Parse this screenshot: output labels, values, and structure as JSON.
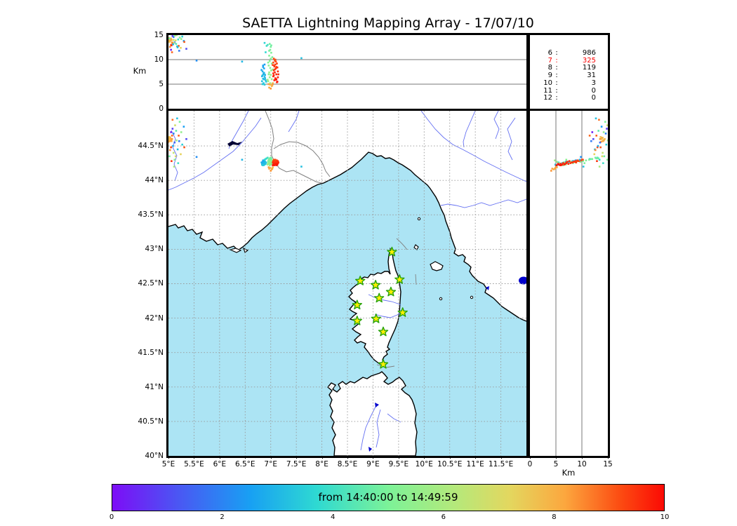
{
  "title": "SAETTA Lightning Mapping Array - 17/07/10",
  "top_panel": {
    "ylabel": "Km",
    "yticks": [
      "15",
      "10",
      "5",
      "0"
    ]
  },
  "map_panel": {
    "xticks": [
      "5°E",
      "5.5°E",
      "6°E",
      "6.5°E",
      "7°E",
      "7.5°E",
      "8°E",
      "8.5°E",
      "9°E",
      "9.5°E",
      "10°E",
      "10.5°E",
      "11°E",
      "11.5°E"
    ],
    "yticks": [
      "44.5°N",
      "44°N",
      "43.5°N",
      "43°N",
      "42.5°N",
      "42°N",
      "41.5°N",
      "41°N",
      "40.5°N",
      "40°N"
    ]
  },
  "right_panel": {
    "xlabel": "Km",
    "xticks": [
      "0",
      "5",
      "10",
      "15"
    ]
  },
  "stats": {
    "rows": [
      {
        "label": "6",
        "value": "986",
        "highlight": false
      },
      {
        "label": "7",
        "value": "325",
        "highlight": true
      },
      {
        "label": "8",
        "value": "119",
        "highlight": false
      },
      {
        "label": "9",
        "value": "31",
        "highlight": false
      },
      {
        "label": "10",
        "value": "3",
        "highlight": false
      },
      {
        "label": "11",
        "value": "0",
        "highlight": false
      },
      {
        "label": "12",
        "value": "0",
        "highlight": false
      }
    ]
  },
  "colorbar": {
    "label": "from 14:40:00 to 14:49:59",
    "ticks": [
      "0",
      "2",
      "4",
      "6",
      "8",
      "10"
    ],
    "stops": [
      {
        "p": 0,
        "c": "#7d0df6"
      },
      {
        "p": 12,
        "c": "#4a57f3"
      },
      {
        "p": 25,
        "c": "#18a0f3"
      },
      {
        "p": 37,
        "c": "#2ed9d2"
      },
      {
        "p": 50,
        "c": "#7cf298"
      },
      {
        "p": 62,
        "c": "#b4e97b"
      },
      {
        "p": 72,
        "c": "#e3d75f"
      },
      {
        "p": 82,
        "c": "#fca73e"
      },
      {
        "p": 92,
        "c": "#fc4c12"
      },
      {
        "p": 100,
        "c": "#fb0a04"
      }
    ]
  },
  "colors": {
    "sea": "#ace4f4",
    "land": "#ffffff",
    "coast": "#000000",
    "river": "#6470f2",
    "border_line": "#808080",
    "grid": "#999999",
    "panel_gridline": "#777777",
    "station_fill": "#fdee02",
    "station_stroke": "#27a30c",
    "lake": "#0000cc",
    "dark_lake": "#000033",
    "highlight": "#fb0000"
  },
  "chart_data": {
    "type": "scatter",
    "title": "SAETTA Lightning Mapping Array - 17/07/10",
    "time_range": {
      "start": "14:40:00",
      "end": "14:49:59",
      "colorbar_scale_min": 0,
      "colorbar_scale_max": 10
    },
    "panels": {
      "top": {
        "x": "longitude_deg_E",
        "xlim": [
          5,
          12
        ],
        "y": "altitude_km",
        "ylim": [
          0,
          15
        ],
        "gridlines_y": [
          5,
          10
        ]
      },
      "map": {
        "x": "longitude_deg_E",
        "xlim": [
          5,
          12
        ],
        "y": "latitude_deg_N",
        "ylim": [
          40,
          45.01
        ],
        "grid_step_deg": 0.5
      },
      "right": {
        "x": "altitude_km",
        "xlim": [
          0,
          15
        ],
        "y": "latitude_deg_N",
        "ylim": [
          40,
          45.01
        ],
        "gridlines_x": [
          5,
          10
        ]
      }
    },
    "station_count_histogram": {
      "contributing_stations": [
        6,
        7,
        8,
        9,
        10,
        11,
        12
      ],
      "source_counts": [
        986,
        325,
        119,
        31,
        3,
        0,
        0
      ]
    },
    "point_format": [
      "lon_deg_E",
      "lat_deg_N",
      "alt_km",
      "time_min_0_10"
    ],
    "points": [
      [
        6.85,
        44.29,
        8.8,
        2.6
      ],
      [
        6.87,
        44.28,
        8.2,
        2.7
      ],
      [
        6.84,
        44.27,
        7.6,
        2.8
      ],
      [
        6.86,
        44.25,
        7.0,
        2.9
      ],
      [
        6.88,
        44.26,
        6.5,
        3.0
      ],
      [
        6.85,
        44.24,
        6.1,
        3.1
      ],
      [
        6.83,
        44.23,
        5.6,
        3.2
      ],
      [
        6.86,
        44.22,
        5.2,
        3.3
      ],
      [
        6.88,
        44.23,
        4.9,
        3.4
      ],
      [
        6.84,
        44.25,
        6.8,
        3.0
      ],
      [
        6.87,
        44.27,
        7.3,
        2.8
      ],
      [
        6.89,
        44.25,
        6.2,
        3.1
      ],
      [
        6.82,
        44.26,
        7.9,
        2.7
      ],
      [
        6.9,
        44.24,
        5.8,
        3.2
      ],
      [
        6.85,
        44.28,
        8.5,
        2.6
      ],
      [
        6.88,
        44.29,
        9.0,
        2.5
      ],
      [
        6.83,
        44.24,
        6.6,
        3.0
      ],
      [
        6.86,
        44.26,
        7.2,
        2.9
      ],
      [
        6.89,
        44.27,
        6.9,
        3.0
      ],
      [
        6.91,
        44.26,
        5.5,
        3.3
      ],
      [
        6.84,
        44.22,
        5.0,
        3.4
      ],
      [
        6.87,
        44.24,
        6.0,
        3.1
      ],
      [
        6.88,
        44.3,
        13.4,
        3.6
      ],
      [
        6.92,
        44.32,
        12.8,
        3.9
      ],
      [
        6.9,
        44.31,
        11.5,
        3.7
      ],
      [
        6.94,
        44.33,
        13.0,
        4.1
      ],
      [
        6.98,
        44.32,
        13.2,
        4.8
      ],
      [
        7.0,
        44.33,
        12.6,
        4.9
      ],
      [
        6.99,
        44.31,
        12.0,
        5.0
      ],
      [
        7.01,
        44.3,
        11.4,
        5.0
      ],
      [
        6.97,
        44.29,
        10.8,
        5.1
      ],
      [
        7.0,
        44.28,
        10.2,
        5.1
      ],
      [
        6.98,
        44.27,
        9.7,
        5.2
      ],
      [
        7.02,
        44.28,
        9.2,
        5.2
      ],
      [
        6.96,
        44.26,
        8.8,
        5.3
      ],
      [
        6.99,
        44.25,
        8.3,
        5.3
      ],
      [
        7.01,
        44.26,
        7.8,
        5.4
      ],
      [
        6.97,
        44.24,
        7.4,
        5.4
      ],
      [
        7.0,
        44.23,
        6.9,
        5.5
      ],
      [
        6.98,
        44.22,
        6.4,
        5.5
      ],
      [
        7.02,
        44.24,
        6.0,
        5.6
      ],
      [
        6.95,
        44.25,
        5.6,
        5.6
      ],
      [
        6.99,
        44.27,
        5.2,
        5.7
      ],
      [
        7.03,
        44.29,
        4.8,
        5.7
      ],
      [
        6.96,
        44.3,
        7.0,
        5.3
      ],
      [
        7.04,
        44.27,
        8.0,
        5.2
      ],
      [
        6.95,
        44.28,
        9.4,
        5.1
      ],
      [
        7.03,
        44.25,
        10.5,
        5.0
      ],
      [
        6.97,
        44.31,
        11.8,
        4.9
      ],
      [
        7.05,
        44.26,
        6.6,
        5.6
      ],
      [
        6.94,
        44.23,
        5.9,
        5.8
      ],
      [
        7.01,
        44.32,
        12.9,
        4.8
      ],
      [
        7.06,
        44.3,
        10.2,
        9.2
      ],
      [
        7.08,
        44.29,
        9.8,
        9.3
      ],
      [
        7.05,
        44.28,
        9.4,
        9.3
      ],
      [
        7.09,
        44.28,
        9.0,
        9.4
      ],
      [
        7.07,
        44.27,
        8.6,
        9.4
      ],
      [
        7.1,
        44.26,
        8.2,
        9.5
      ],
      [
        7.06,
        44.25,
        7.8,
        9.5
      ],
      [
        7.08,
        44.24,
        7.4,
        9.6
      ],
      [
        7.11,
        44.25,
        7.0,
        9.6
      ],
      [
        7.05,
        44.23,
        6.6,
        9.7
      ],
      [
        7.09,
        44.23,
        6.2,
        9.7
      ],
      [
        7.07,
        44.22,
        5.8,
        9.8
      ],
      [
        7.12,
        44.24,
        5.4,
        9.8
      ],
      [
        7.04,
        44.26,
        8.9,
        9.4
      ],
      [
        7.13,
        44.27,
        8.4,
        9.5
      ],
      [
        7.1,
        44.29,
        9.6,
        9.3
      ],
      [
        7.14,
        44.28,
        7.6,
        9.6
      ],
      [
        7.05,
        44.27,
        7.2,
        9.6
      ],
      [
        7.11,
        44.22,
        6.0,
        9.8
      ],
      [
        7.08,
        44.26,
        8.0,
        9.5
      ],
      [
        7.12,
        44.29,
        9.2,
        9.4
      ],
      [
        7.06,
        44.24,
        6.8,
        9.7
      ],
      [
        7.14,
        44.25,
        6.4,
        9.7
      ],
      [
        7.09,
        44.3,
        10.0,
        9.2
      ],
      [
        7.15,
        44.26,
        7.0,
        9.6
      ],
      [
        7.07,
        44.28,
        8.8,
        9.4
      ],
      [
        7.1,
        44.24,
        5.9,
        9.8
      ],
      [
        7.13,
        44.23,
        5.5,
        9.9
      ],
      [
        7.04,
        44.22,
        5.1,
        9.9
      ],
      [
        7.11,
        44.27,
        8.5,
        9.5
      ],
      [
        6.99,
        44.18,
        4.9,
        7.9
      ],
      [
        7.02,
        44.16,
        4.6,
        8.0
      ],
      [
        6.97,
        44.17,
        4.3,
        8.2
      ],
      [
        7.04,
        44.19,
        5.2,
        7.8
      ],
      [
        7.0,
        44.14,
        4.1,
        8.4
      ],
      [
        7.03,
        44.17,
        4.8,
        8.1
      ],
      [
        6.96,
        44.19,
        5.0,
        8.3
      ],
      [
        5.0,
        44.62,
        14.0,
        7.6
      ],
      [
        5.02,
        44.6,
        13.8,
        7.8
      ],
      [
        5.01,
        44.58,
        14.2,
        8.0
      ],
      [
        5.04,
        44.61,
        13.9,
        7.7
      ],
      [
        5.03,
        44.57,
        14.1,
        8.1
      ],
      [
        5.0,
        44.56,
        13.7,
        8.3
      ],
      [
        5.05,
        44.59,
        14.3,
        7.9
      ],
      [
        5.02,
        44.63,
        13.6,
        7.5
      ],
      [
        5.06,
        44.57,
        14.0,
        8.2
      ],
      [
        5.01,
        44.6,
        14.4,
        7.8
      ],
      [
        5.03,
        44.62,
        13.8,
        8.0
      ],
      [
        5.07,
        44.6,
        13.5,
        8.4
      ],
      [
        5.1,
        44.68,
        14.6,
        2.0
      ],
      [
        5.15,
        44.72,
        13.2,
        4.5
      ],
      [
        5.08,
        44.75,
        14.8,
        0.8
      ],
      [
        5.2,
        44.65,
        12.8,
        9.0
      ],
      [
        5.12,
        44.55,
        13.5,
        1.5
      ],
      [
        5.25,
        44.7,
        14.2,
        5.5
      ],
      [
        5.05,
        44.48,
        13.0,
        9.3
      ],
      [
        5.18,
        44.45,
        12.5,
        3.0
      ],
      [
        5.1,
        44.4,
        14.0,
        6.5
      ],
      [
        5.3,
        44.78,
        13.8,
        2.5
      ],
      [
        5.22,
        44.85,
        14.5,
        5.0
      ],
      [
        5.08,
        44.88,
        13.3,
        8.8
      ],
      [
        5.35,
        44.6,
        12.2,
        1.0
      ],
      [
        5.14,
        44.35,
        13.9,
        7.0
      ],
      [
        5.06,
        44.28,
        12.9,
        9.5
      ],
      [
        5.19,
        44.25,
        14.1,
        4.0
      ],
      [
        5.11,
        44.2,
        13.4,
        6.0
      ],
      [
        5.27,
        44.52,
        14.7,
        3.5
      ],
      [
        5.03,
        44.44,
        12.6,
        8.5
      ],
      [
        5.16,
        44.58,
        15.0,
        5.8
      ],
      [
        5.09,
        44.5,
        13.1,
        2.8
      ],
      [
        5.24,
        44.38,
        12.4,
        7.3
      ],
      [
        5.05,
        44.7,
        12.0,
        0.3
      ],
      [
        5.13,
        44.8,
        14.9,
        6.8
      ],
      [
        5.31,
        44.48,
        13.6,
        9.1
      ],
      [
        5.02,
        44.35,
        14.3,
        4.8
      ],
      [
        5.21,
        44.57,
        11.8,
        1.8
      ],
      [
        5.07,
        44.65,
        11.5,
        8.9
      ],
      [
        5.17,
        44.9,
        12.7,
        3.2
      ],
      [
        5.12,
        44.3,
        14.9,
        5.2
      ],
      [
        6.44,
        44.3,
        9.6,
        3.0
      ],
      [
        7.6,
        44.2,
        10.3,
        3.2
      ],
      [
        5.55,
        44.34,
        9.8,
        2.2
      ]
    ],
    "stations": [
      [
        9.37,
        42.96
      ],
      [
        8.75,
        42.54
      ],
      [
        9.05,
        42.48
      ],
      [
        9.52,
        42.56
      ],
      [
        9.35,
        42.38
      ],
      [
        9.12,
        42.29
      ],
      [
        8.69,
        42.19
      ],
      [
        9.58,
        42.08
      ],
      [
        8.69,
        41.96
      ],
      [
        9.06,
        41.99
      ],
      [
        9.2,
        41.8
      ],
      [
        9.2,
        41.33
      ]
    ]
  }
}
